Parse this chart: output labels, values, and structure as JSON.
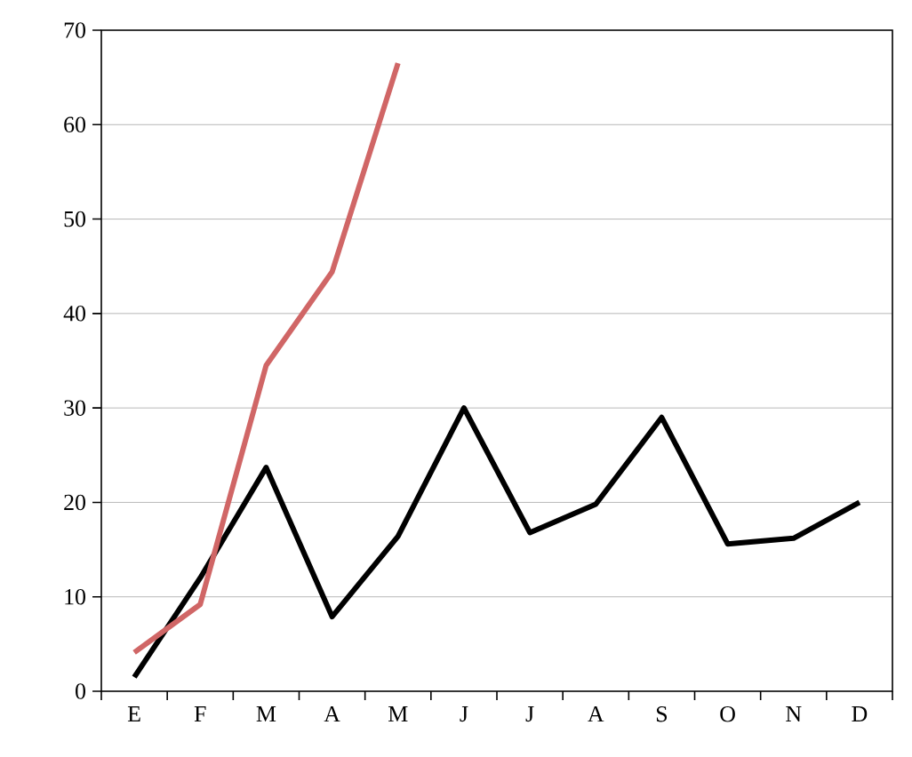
{
  "chart_data": {
    "type": "line",
    "categories": [
      "E",
      "F",
      "M",
      "A",
      "M",
      "J",
      "J",
      "A",
      "S",
      "O",
      "N",
      "D"
    ],
    "series": [
      {
        "color": "#000000",
        "values": [
          1.5,
          12,
          23.7,
          7.9,
          16.4,
          30,
          16.8,
          19.8,
          29,
          15.6,
          16.2,
          20
        ]
      },
      {
        "color": "#d06666",
        "values": [
          4.1,
          9.2,
          34.5,
          44.4,
          66.5,
          null,
          null,
          null,
          null,
          null,
          null,
          null
        ]
      }
    ],
    "ylim": [
      0,
      70
    ],
    "yticks": [
      0,
      10,
      20,
      30,
      40,
      50,
      60,
      70
    ],
    "grid": "y",
    "marker": "none",
    "line_style": "solid"
  }
}
